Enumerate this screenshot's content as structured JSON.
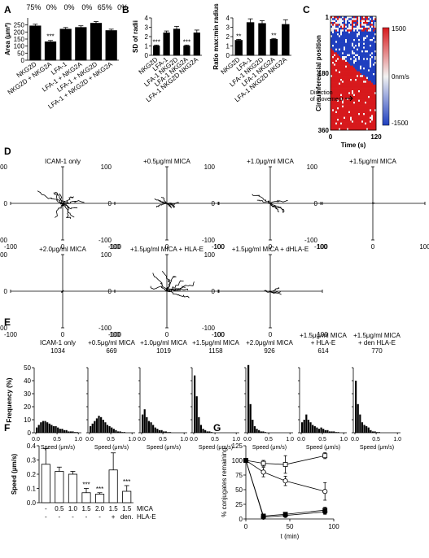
{
  "chart_data": [
    {
      "panel": "A",
      "type": "bar",
      "ylabel": "Area (μm²)",
      "ylim": [
        0,
        300
      ],
      "yticks": [
        0,
        50,
        100,
        150,
        200,
        250
      ],
      "categories": [
        "NKG2D",
        "NKG2D + NKG2A",
        "LFA-1",
        "LFA-1 + NKG2A",
        "LFA-1 + NKG2D",
        "LFA-1 + NKG2D + NKG2A"
      ],
      "values": [
        243,
        130,
        220,
        232,
        262,
        210
      ],
      "errors": [
        12,
        10,
        12,
        12,
        12,
        10
      ],
      "sig": [
        "",
        "***",
        "",
        "",
        "",
        ""
      ],
      "top_labels": [
        "75%",
        "0%",
        "0%",
        "0%",
        "65%",
        "0%"
      ]
    },
    {
      "panel": "B1",
      "type": "bar",
      "ylabel": "SD of radii",
      "ylim": [
        0,
        4
      ],
      "yticks": [
        0,
        1,
        2,
        3,
        4
      ],
      "categories": [
        "NKG2D",
        "LFA-1",
        "LFA-1 NKG2D",
        "LFA-1 NKG2A",
        "LFA-1 NKG2D NKG2A"
      ],
      "values": [
        1.0,
        2.4,
        2.8,
        1.0,
        2.4
      ],
      "errors": [
        0.1,
        0.2,
        0.3,
        0.1,
        0.3
      ],
      "sig": [
        "***",
        "",
        "",
        "***",
        ""
      ]
    },
    {
      "panel": "B2",
      "type": "bar",
      "ylabel": "Ratio max:min radius",
      "ylim": [
        0,
        4
      ],
      "yticks": [
        0,
        1,
        2,
        3,
        4
      ],
      "categories": [
        "NKG2D",
        "LFA-1",
        "LFA-1 NKG2D",
        "LFA-1 NKG2A",
        "LFA-1 NKG2D NKG2A"
      ],
      "values": [
        1.6,
        3.5,
        3.4,
        1.7,
        3.3
      ],
      "errors": [
        0.1,
        0.4,
        0.3,
        0.1,
        0.5
      ],
      "sig": [
        "**",
        "",
        "",
        "**",
        ""
      ]
    },
    {
      "panel": "C",
      "type": "heatmap",
      "ylabel": "Circumferencial position",
      "xlabel": "Time (s)",
      "xlim": [
        0,
        120
      ],
      "yticks": [
        1,
        180,
        360
      ],
      "xticks": [
        0,
        120
      ],
      "colorbar": {
        "max": "1500",
        "mid": "0nm/s",
        "min": "-1500"
      },
      "colors": {
        "high": "#d7191c",
        "mid": "#f2f2f2",
        "low": "#1f3fbf"
      },
      "annotation": "Direction of movement"
    },
    {
      "panel": "D",
      "type": "line",
      "description_type": "trajectory",
      "xlim": [
        -100,
        100
      ],
      "ylim": [
        -100,
        100
      ],
      "ticks": [
        -100,
        0,
        100
      ],
      "plots": [
        {
          "title": "ICAM-1 only",
          "spread": 32,
          "tracks": 10
        },
        {
          "title": "+0.5μg/ml MICA",
          "spread": 18,
          "tracks": 8
        },
        {
          "title": "+1.0μg/ml MICA",
          "spread": 30,
          "tracks": 6
        },
        {
          "title": "+1.5μg/ml MICA",
          "spread": 2,
          "tracks": 3
        },
        {
          "title": "+2.0μg/ml MICA",
          "spread": 3,
          "tracks": 3
        },
        {
          "title": "+1.5μg/ml MICA + HLA-E",
          "spread": 36,
          "tracks": 9
        },
        {
          "title": "+1.5μg/ml MICA + dHLA-E",
          "spread": 16,
          "tracks": 4
        }
      ]
    },
    {
      "panel": "E",
      "type": "bar",
      "description_type": "histogram",
      "ylabel": "Frequency (%)",
      "xlabel": "Speed (μm/s)",
      "ylim": [
        0,
        50
      ],
      "yticks": [
        0,
        10,
        20,
        30,
        40,
        50
      ],
      "xticks": [
        "0.0",
        "0.5",
        "1.0"
      ],
      "plots": [
        {
          "title": "ICAM-1 only",
          "n": "1034",
          "values": [
            4,
            6,
            8,
            9,
            9,
            8,
            7,
            6,
            5,
            5,
            4,
            3,
            3,
            2,
            2,
            1,
            1,
            1,
            0.5,
            0.5
          ]
        },
        {
          "title": "+0.5μg/ml MICA",
          "n": "669",
          "values": [
            5,
            7,
            9,
            11,
            13,
            12,
            10,
            8,
            6,
            5,
            4,
            3,
            2,
            1,
            1,
            0.5,
            0.5,
            0,
            0,
            0
          ]
        },
        {
          "title": "+1.0μg/ml MICA",
          "n": "1019",
          "values": [
            14,
            18,
            12,
            9,
            8,
            6,
            4,
            3,
            2,
            2,
            1,
            1,
            0.5,
            0.5,
            0,
            0,
            0,
            0,
            0,
            0
          ]
        },
        {
          "title": "+1.5μg/ml MICA",
          "n": "1158",
          "values": [
            44,
            28,
            12,
            6,
            3,
            2,
            1,
            1,
            0.5,
            0,
            0,
            0,
            0,
            0,
            0,
            0,
            0,
            0,
            0,
            0
          ]
        },
        {
          "title": "+2.0μg/ml MICA",
          "n": "926",
          "values": [
            52,
            22,
            10,
            5,
            3,
            2,
            1,
            1,
            0.5,
            0,
            0,
            0,
            0,
            0,
            0,
            0,
            0,
            0,
            0,
            0
          ]
        },
        {
          "title": "+1.5μg/ml MICA + HLA-E",
          "n": "614",
          "values": [
            8,
            10,
            14,
            10,
            8,
            6,
            5,
            4,
            3,
            4,
            3,
            2,
            2,
            1,
            1,
            1,
            0.5,
            0.5,
            0,
            0
          ]
        },
        {
          "title": "+1.5μg/ml MICA + den HLA-E",
          "n": "770",
          "values": [
            40,
            22,
            14,
            8,
            6,
            5,
            4,
            2,
            1,
            1,
            0.5,
            0.5,
            0,
            0,
            0,
            0,
            0,
            0,
            0,
            0
          ]
        }
      ]
    },
    {
      "panel": "F",
      "type": "bar",
      "ylabel": "Speed (μm/s)",
      "ylim": [
        0,
        0.4
      ],
      "yticks": [
        "0.0",
        "0.1",
        "0.2",
        "0.3",
        "0.4"
      ],
      "values": [
        0.27,
        0.22,
        0.2,
        0.07,
        0.06,
        0.23,
        0.08
      ],
      "errors": [
        0.11,
        0.03,
        0.02,
        0.03,
        0.01,
        0.12,
        0.04
      ],
      "sig": [
        "",
        "",
        "",
        "***",
        "***",
        "",
        "***"
      ],
      "mica_row": [
        "-",
        "0.5",
        "1.0",
        "1.5",
        "2.0",
        "1.5",
        "1.5"
      ],
      "hla_row": [
        "-",
        "-",
        "-",
        "-",
        "-",
        "+",
        "den."
      ],
      "mica_label": "MICA",
      "hla_label": "HLA-E"
    },
    {
      "panel": "G",
      "type": "line",
      "ylabel": "% conjugates remaining",
      "xlabel": "t (min)",
      "xlim": [
        0,
        100
      ],
      "ylim": [
        0,
        125
      ],
      "xticks": [
        0,
        50,
        100
      ],
      "yticks": [
        0,
        25,
        50,
        75,
        100,
        125
      ],
      "x": [
        0,
        20,
        45,
        90
      ],
      "series": [
        {
          "marker": "open-square",
          "values": [
            100,
            95,
            93,
            108
          ],
          "errors": [
            3,
            5,
            15,
            5
          ]
        },
        {
          "marker": "open-circle",
          "values": [
            100,
            80,
            65,
            47
          ],
          "errors": [
            3,
            8,
            8,
            15
          ]
        },
        {
          "marker": "filled-square",
          "values": [
            100,
            5,
            8,
            15
          ],
          "errors": [
            3,
            2,
            3,
            5
          ]
        },
        {
          "marker": "filled-circle",
          "values": [
            100,
            3,
            6,
            12
          ],
          "errors": [
            3,
            2,
            2,
            4
          ]
        }
      ]
    }
  ]
}
